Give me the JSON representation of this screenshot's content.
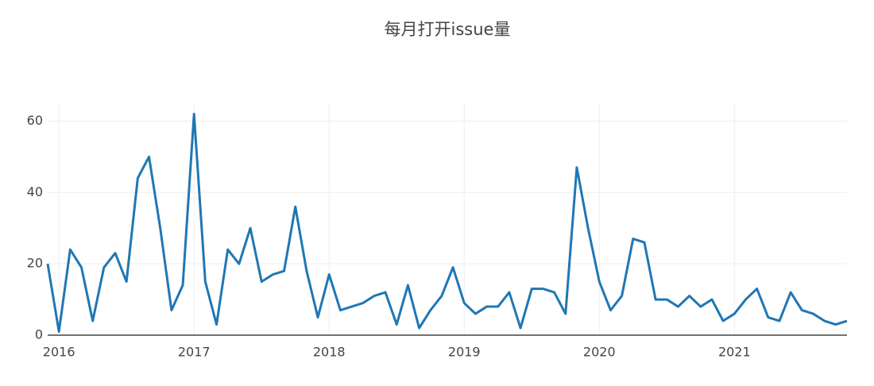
{
  "chart_data": {
    "type": "line",
    "title": "每月打开issue量",
    "x": [
      "2015-12",
      "2016-01",
      "2016-02",
      "2016-03",
      "2016-04",
      "2016-05",
      "2016-06",
      "2016-07",
      "2016-08",
      "2016-09",
      "2016-10",
      "2016-11",
      "2016-12",
      "2017-01",
      "2017-02",
      "2017-03",
      "2017-04",
      "2017-05",
      "2017-06",
      "2017-07",
      "2017-08",
      "2017-09",
      "2017-10",
      "2017-11",
      "2017-12",
      "2018-01",
      "2018-02",
      "2018-03",
      "2018-04",
      "2018-05",
      "2018-06",
      "2018-07",
      "2018-08",
      "2018-09",
      "2018-10",
      "2018-11",
      "2018-12",
      "2019-01",
      "2019-02",
      "2019-03",
      "2019-04",
      "2019-05",
      "2019-06",
      "2019-07",
      "2019-08",
      "2019-09",
      "2019-10",
      "2019-11",
      "2019-12",
      "2020-01",
      "2020-02",
      "2020-03",
      "2020-04",
      "2020-05",
      "2020-06",
      "2020-07",
      "2020-08",
      "2020-09",
      "2020-10",
      "2020-11",
      "2020-12",
      "2021-01",
      "2021-02",
      "2021-03",
      "2021-04",
      "2021-05",
      "2021-06",
      "2021-07",
      "2021-08",
      "2021-09",
      "2021-10",
      "2021-11"
    ],
    "series": [
      {
        "color": "#1f77b4",
        "values": [
          20,
          1,
          24,
          19,
          4,
          19,
          23,
          15,
          44,
          50,
          30,
          7,
          14,
          62,
          15,
          3,
          24,
          20,
          30,
          15,
          17,
          18,
          36,
          18,
          5,
          17,
          7,
          8,
          9,
          11,
          12,
          3,
          14,
          2,
          7,
          11,
          19,
          9,
          6,
          8,
          8,
          12,
          2,
          13,
          13,
          12,
          6,
          47,
          30,
          15,
          7,
          11,
          27,
          26,
          10,
          10,
          8,
          11,
          8,
          10,
          4,
          6,
          10,
          13,
          5,
          4,
          12,
          7,
          6,
          4,
          3,
          4
        ]
      }
    ],
    "xlim": [
      "2015-12",
      "2021-11"
    ],
    "xticks": [
      {
        "value": "2016-01",
        "label": "2016"
      },
      {
        "value": "2017-01",
        "label": "2017"
      },
      {
        "value": "2018-01",
        "label": "2018"
      },
      {
        "value": "2019-01",
        "label": "2019"
      },
      {
        "value": "2020-01",
        "label": "2020"
      },
      {
        "value": "2021-01",
        "label": "2021"
      }
    ],
    "ylim": [
      0,
      65
    ],
    "yticks": [
      0,
      20,
      40,
      60
    ],
    "grid": true
  }
}
